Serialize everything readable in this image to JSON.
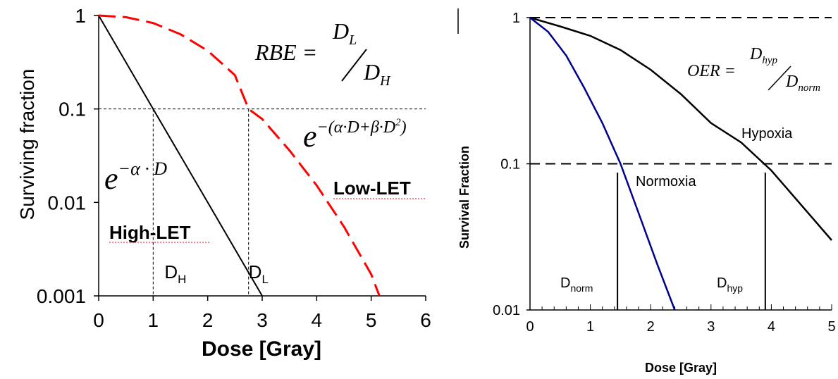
{
  "chart_data": [
    {
      "type": "line",
      "ylabel": "Surviving fraction",
      "xlabel": "Dose [Gray]",
      "x_ticks": [
        "0",
        "1",
        "2",
        "3",
        "4",
        "5",
        "6"
      ],
      "y_ticks": [
        "1",
        "0.1",
        "0.01",
        "0.001"
      ],
      "xlim": [
        0,
        6
      ],
      "ylim": [
        0.001,
        1
      ],
      "yscale": "log",
      "grid": false,
      "reference_line": {
        "y": 0.1
      },
      "series": [
        {
          "name": "High-LET",
          "color": "#000000",
          "style": "solid",
          "x": [
            0,
            1.0,
            2.0,
            3.0
          ],
          "y": [
            1,
            0.1,
            0.01,
            0.001
          ]
        },
        {
          "name": "Low-LET",
          "color": "#ff0000",
          "style": "dashed",
          "x": [
            0,
            0.5,
            1.0,
            1.5,
            2.0,
            2.5,
            2.75,
            3.0,
            3.5,
            4.0,
            4.5,
            5.0,
            5.15
          ],
          "y": [
            1,
            0.96,
            0.83,
            0.63,
            0.42,
            0.23,
            0.1,
            0.078,
            0.036,
            0.0152,
            0.0055,
            0.0017,
            0.001
          ]
        }
      ],
      "markers": [
        {
          "label": "D",
          "sub": "H",
          "x": 1.0
        },
        {
          "label": "D",
          "sub": "L",
          "x": 2.75
        }
      ],
      "annotations": {
        "rbe_lhs": "RBE = ",
        "rbe_num": "D",
        "rbe_num_sub": "L",
        "rbe_den": "D",
        "rbe_den_sub": "H",
        "high_formula_base": "e",
        "high_formula_exp": "−α · D",
        "low_formula_base": "e",
        "low_formula_exp": "−(α·D+β·D",
        "low_formula_exp_sup": "2",
        "low_formula_exp_close": ")",
        "high_label": "High-LET",
        "low_label": "Low-LET"
      }
    },
    {
      "type": "line",
      "ylabel": "Survival Fraction",
      "xlabel": "Dose [Gray]",
      "x_ticks": [
        "0",
        "1",
        "2",
        "3",
        "4",
        "5"
      ],
      "y_ticks": [
        "1",
        "0.1",
        "0.01"
      ],
      "xlim": [
        0,
        5
      ],
      "ylim": [
        0.01,
        1
      ],
      "yscale": "log",
      "grid": false,
      "reference_lines": [
        {
          "y": 1
        },
        {
          "y": 0.1
        }
      ],
      "series": [
        {
          "name": "Hypoxia",
          "color": "#000000",
          "x": [
            0,
            0.5,
            1.0,
            1.5,
            2.0,
            2.5,
            3.0,
            3.5,
            4.0,
            4.5,
            5.0
          ],
          "y": [
            1,
            0.87,
            0.75,
            0.6,
            0.44,
            0.3,
            0.19,
            0.14,
            0.09,
            0.052,
            0.03
          ]
        },
        {
          "name": "Normoxia",
          "color": "#00008b",
          "x": [
            0,
            0.3,
            0.6,
            0.9,
            1.2,
            1.5,
            1.8,
            2.1,
            2.4
          ],
          "y": [
            1,
            0.8,
            0.55,
            0.33,
            0.19,
            0.1,
            0.046,
            0.021,
            0.01
          ]
        }
      ],
      "markers": [
        {
          "label": "D",
          "sub": "norm",
          "x": 1.45
        },
        {
          "label": "D",
          "sub": "hyp",
          "x": 3.9
        }
      ],
      "annotations": {
        "oer_lhs": "OER = ",
        "oer_num": "D",
        "oer_num_sub": "hyp",
        "oer_den": "D",
        "oer_den_sub": "norm"
      }
    }
  ]
}
